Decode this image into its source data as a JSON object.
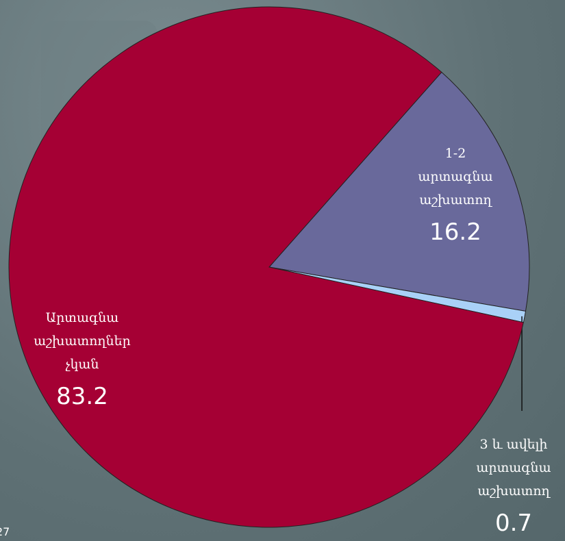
{
  "chart_data": {
    "type": "pie",
    "categories": [
      "1-2 արտագնա աշխատող",
      "3 և ավելի արտագնա աշխատող",
      "Արտագնա աշխատողներ չկան"
    ],
    "values": [
      16.2,
      0.7,
      83.2
    ],
    "colors": [
      "#69699b",
      "#a9d1f7",
      "#a50034"
    ]
  },
  "page_number": "27"
}
